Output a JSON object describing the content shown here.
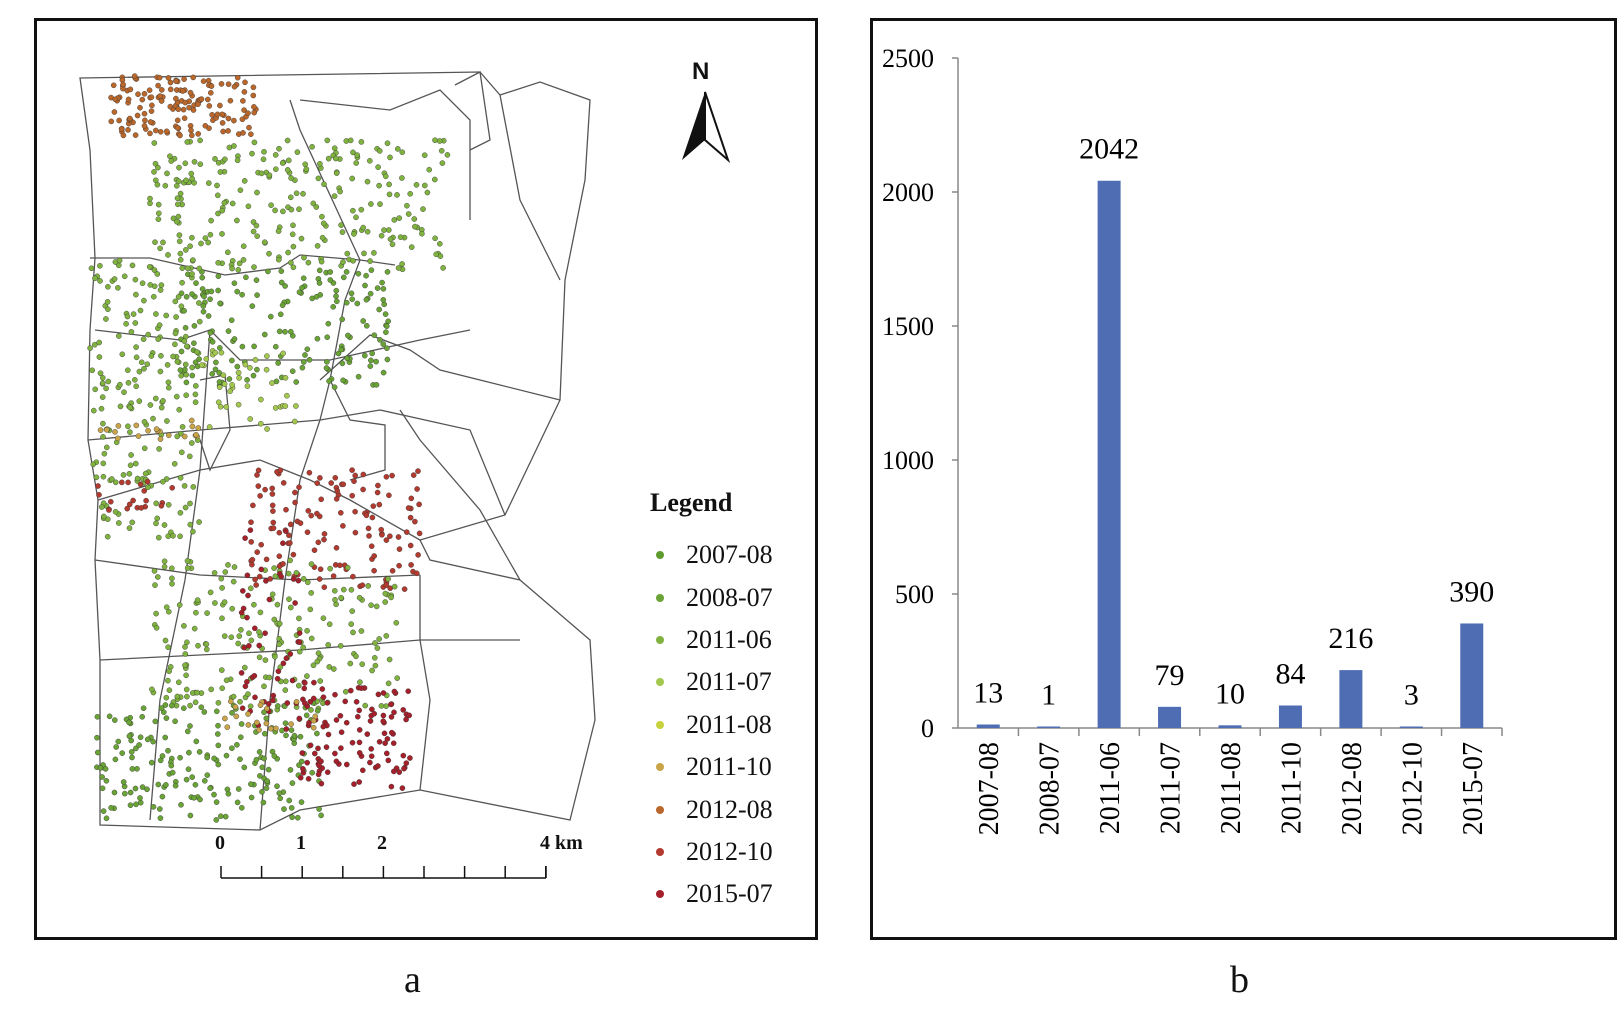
{
  "panel_labels": {
    "a": "a",
    "b": "b"
  },
  "map": {
    "north_label": "N",
    "legend_title": "Legend",
    "legend_items": [
      {
        "label": "2007-08",
        "color": "#5e9b2c"
      },
      {
        "label": "2008-07",
        "color": "#6aa336"
      },
      {
        "label": "2011-06",
        "color": "#7fb23f"
      },
      {
        "label": "2011-07",
        "color": "#a3c84e"
      },
      {
        "label": "2011-08",
        "color": "#c8d23e"
      },
      {
        "label": "2011-10",
        "color": "#c9a449"
      },
      {
        "label": "2012-08",
        "color": "#b9672b"
      },
      {
        "label": "2012-10",
        "color": "#b23a2f"
      },
      {
        "label": "2015-07",
        "color": "#a5202a"
      }
    ],
    "scale_labels": [
      "0",
      "1",
      "2",
      "4 km"
    ]
  },
  "chart_data": {
    "type": "bar",
    "categories": [
      "2007-08",
      "2008-07",
      "2011-06",
      "2011-07",
      "2011-08",
      "2011-10",
      "2012-08",
      "2012-10",
      "2015-07"
    ],
    "values": [
      13,
      1,
      2042,
      79,
      10,
      84,
      216,
      3,
      390
    ],
    "data_labels": [
      "13",
      "1",
      "2042",
      "79",
      "10",
      "84",
      "216",
      "3",
      "390"
    ],
    "yticks": [
      "0",
      "500",
      "1000",
      "1500",
      "2000",
      "2500"
    ],
    "ylim": [
      0,
      2500
    ],
    "bar_color": "#4f6db3",
    "title": "",
    "xlabel": "",
    "ylabel": "",
    "grid": false
  }
}
